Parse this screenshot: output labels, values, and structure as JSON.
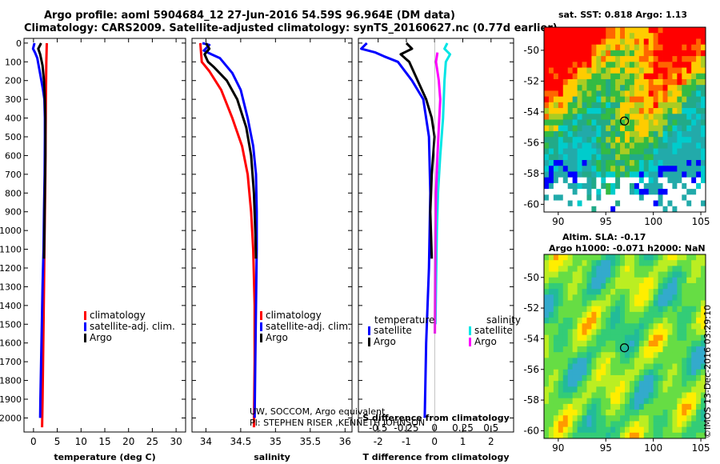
{
  "header": {
    "line1": "Argo profile: aoml 5904684_12 27-Jun-2016 54.59S 96.964E (DM data)",
    "line2": "Climatology: CARS2009. Satellite-adjusted climatology: synTS_20160627.nc (0.77d earlier)"
  },
  "colors": {
    "climatology": "#ff0000",
    "satellite": "#0000ff",
    "argo": "#000000",
    "sal_satellite": "#00e5e5",
    "sal_argo": "#ff00ff"
  },
  "chart_data": [
    {
      "type": "line",
      "title": "",
      "xlabel": "temperature (deg C)",
      "ylabel": "",
      "xlim": [
        -2,
        32
      ],
      "ylim": [
        2075,
        -25
      ],
      "xticks": [
        0,
        5,
        10,
        15,
        20,
        25,
        30
      ],
      "yticks": [
        0,
        100,
        200,
        300,
        400,
        500,
        600,
        700,
        800,
        900,
        1000,
        1100,
        1200,
        1300,
        1400,
        1500,
        1600,
        1700,
        1800,
        1900,
        2000
      ],
      "legend": [
        "climatology",
        "satellite-adj. clim.",
        "Argo"
      ],
      "series": [
        {
          "name": "climatology",
          "color": "#ff0000",
          "points": [
            [
              2.8,
              0
            ],
            [
              2.7,
              100
            ],
            [
              2.65,
              200
            ],
            [
              2.6,
              300
            ],
            [
              2.55,
              500
            ],
            [
              2.5,
              700
            ],
            [
              2.4,
              900
            ],
            [
              2.3,
              1100
            ],
            [
              2.2,
              1300
            ],
            [
              2.1,
              1500
            ],
            [
              2.0,
              1700
            ],
            [
              1.9,
              1900
            ],
            [
              1.8,
              2050
            ]
          ]
        },
        {
          "name": "satellite-adj. clim.",
          "color": "#0000ff",
          "points": [
            [
              0.2,
              0
            ],
            [
              -0.1,
              30
            ],
            [
              0.3,
              50
            ],
            [
              0.8,
              80
            ],
            [
              1.3,
              150
            ],
            [
              2.0,
              250
            ],
            [
              2.3,
              300
            ],
            [
              2.4,
              400
            ],
            [
              2.4,
              500
            ],
            [
              2.35,
              700
            ],
            [
              2.2,
              900
            ],
            [
              2.1,
              1100
            ],
            [
              1.9,
              1300
            ],
            [
              1.75,
              1500
            ],
            [
              1.6,
              1700
            ],
            [
              1.45,
              1900
            ],
            [
              1.4,
              2000
            ]
          ]
        },
        {
          "name": "Argo",
          "color": "#000000",
          "points": [
            [
              1.6,
              0
            ],
            [
              1.0,
              30
            ],
            [
              1.4,
              60
            ],
            [
              1.9,
              120
            ],
            [
              2.2,
              200
            ],
            [
              2.4,
              300
            ],
            [
              2.5,
              400
            ],
            [
              2.5,
              600
            ],
            [
              2.4,
              800
            ],
            [
              2.3,
              1000
            ],
            [
              2.2,
              1150
            ]
          ]
        }
      ]
    },
    {
      "type": "line",
      "title": "",
      "xlabel": "salinity",
      "ylabel": "",
      "xlim": [
        33.8,
        36.1
      ],
      "ylim": [
        2075,
        -25
      ],
      "xticks": [
        34,
        34.5,
        35,
        35.5,
        36
      ],
      "xticklabels": [
        "34",
        "34.5",
        "35",
        "35.5",
        "36"
      ],
      "legend": [
        "climatology",
        "satellite-adj. clim.",
        "Argo"
      ],
      "annotations": [
        "UW, SOCCOM, Argo equivalent",
        "PI: STEPHEN RISER ,KENNETH JOHNSON"
      ],
      "series": [
        {
          "name": "climatology",
          "color": "#ff0000",
          "points": [
            [
              33.92,
              0
            ],
            [
              33.94,
              100
            ],
            [
              34.05,
              150
            ],
            [
              34.22,
              250
            ],
            [
              34.38,
              400
            ],
            [
              34.52,
              550
            ],
            [
              34.6,
              700
            ],
            [
              34.65,
              900
            ],
            [
              34.68,
              1100
            ],
            [
              34.7,
              1400
            ],
            [
              34.7,
              1700
            ],
            [
              34.69,
              2050
            ]
          ]
        },
        {
          "name": "satellite-adj. clim.",
          "color": "#0000ff",
          "points": [
            [
              33.95,
              0
            ],
            [
              34.05,
              10
            ],
            [
              33.97,
              40
            ],
            [
              34.08,
              60
            ],
            [
              34.2,
              80
            ],
            [
              34.38,
              160
            ],
            [
              34.5,
              250
            ],
            [
              34.6,
              400
            ],
            [
              34.68,
              550
            ],
            [
              34.72,
              700
            ],
            [
              34.73,
              900
            ],
            [
              34.73,
              1100
            ],
            [
              34.72,
              1400
            ],
            [
              34.71,
              1700
            ],
            [
              34.7,
              2000
            ]
          ]
        },
        {
          "name": "Argo",
          "color": "#000000",
          "points": [
            [
              34.0,
              0
            ],
            [
              34.05,
              30
            ],
            [
              33.98,
              60
            ],
            [
              34.03,
              100
            ],
            [
              34.12,
              130
            ],
            [
              34.3,
              200
            ],
            [
              34.45,
              300
            ],
            [
              34.58,
              450
            ],
            [
              34.65,
              600
            ],
            [
              34.69,
              800
            ],
            [
              34.71,
              1000
            ],
            [
              34.72,
              1150
            ]
          ]
        }
      ]
    },
    {
      "type": "line",
      "title": "",
      "xlabel": "T difference from climatology",
      "xlabel2": "S difference from climatology",
      "ylabel": "",
      "xlim": [
        -2.7,
        2.8
      ],
      "ylim": [
        2075,
        -25
      ],
      "xticks": [
        -2,
        -1,
        0,
        1,
        2
      ],
      "xticks2": [
        -0.5,
        -0.25,
        0,
        0.25,
        0.5
      ],
      "xlim2": [
        -0.675,
        0.7
      ],
      "legend_temperature_title": "temperature",
      "legend_salinity_title": "salinity",
      "legend": [
        "satellite",
        "Argo",
        "satellite",
        "Argo"
      ],
      "series": [
        {
          "name": "T satellite",
          "color": "#0000ff",
          "points": [
            [
              -2.4,
              0
            ],
            [
              -2.6,
              30
            ],
            [
              -2.1,
              50
            ],
            [
              -1.8,
              70
            ],
            [
              -1.3,
              100
            ],
            [
              -0.8,
              200
            ],
            [
              -0.4,
              300
            ],
            [
              -0.2,
              500
            ],
            [
              -0.15,
              800
            ],
            [
              -0.2,
              1200
            ],
            [
              -0.3,
              1600
            ],
            [
              -0.35,
              2000
            ]
          ]
        },
        {
          "name": "T Argo",
          "color": "#000000",
          "points": [
            [
              -1.0,
              0
            ],
            [
              -0.8,
              30
            ],
            [
              -1.2,
              60
            ],
            [
              -0.9,
              100
            ],
            [
              -0.6,
              200
            ],
            [
              -0.3,
              300
            ],
            [
              -0.1,
              400
            ],
            [
              0.0,
              500
            ],
            [
              -0.1,
              700
            ],
            [
              -0.15,
              900
            ],
            [
              -0.1,
              1150
            ]
          ]
        },
        {
          "name": "S satellite",
          "color": "#00e5e5",
          "points": [
            [
              0.45,
              0
            ],
            [
              0.35,
              30
            ],
            [
              0.55,
              60
            ],
            [
              0.4,
              100
            ],
            [
              0.35,
              200
            ],
            [
              0.3,
              400
            ],
            [
              0.2,
              600
            ],
            [
              0.12,
              800
            ],
            [
              0.08,
              1000
            ],
            [
              0.05,
              1300
            ],
            [
              0.03,
              1500
            ]
          ]
        },
        {
          "name": "S Argo",
          "color": "#ff00ff",
          "points": [
            [
              0.1,
              50
            ],
            [
              0.05,
              100
            ],
            [
              0.15,
              200
            ],
            [
              0.2,
              300
            ],
            [
              0.15,
              450
            ],
            [
              0.1,
              600
            ],
            [
              0.05,
              800
            ],
            [
              0.03,
              1000
            ],
            [
              0.02,
              1300
            ],
            [
              0.01,
              1550
            ]
          ]
        }
      ]
    },
    {
      "type": "heatmap",
      "title": "sat. SST: 0.818 Argo: 1.13",
      "xlim": [
        88.5,
        105.5
      ],
      "ylim": [
        -60.5,
        -48.5
      ],
      "xticks": [
        90,
        95,
        100,
        105
      ],
      "yticks": [
        -50,
        -52,
        -54,
        -56,
        -58,
        -60
      ],
      "marker": {
        "lon": 96.964,
        "lat": -54.59
      }
    },
    {
      "type": "heatmap",
      "title": "Altim. SLA: -0.17",
      "subtitle": "Argo h1000: -0.071 h2000: NaN",
      "xlim": [
        88.5,
        105.5
      ],
      "ylim": [
        -60.5,
        -48.5
      ],
      "xticks": [
        90,
        95,
        100,
        105
      ],
      "yticks": [
        -50,
        -52,
        -54,
        -56,
        -58,
        -60
      ],
      "marker": {
        "lon": 96.964,
        "lat": -54.59
      }
    }
  ],
  "stamp": "©IMOS 13-Dec-2016 03:29:10"
}
